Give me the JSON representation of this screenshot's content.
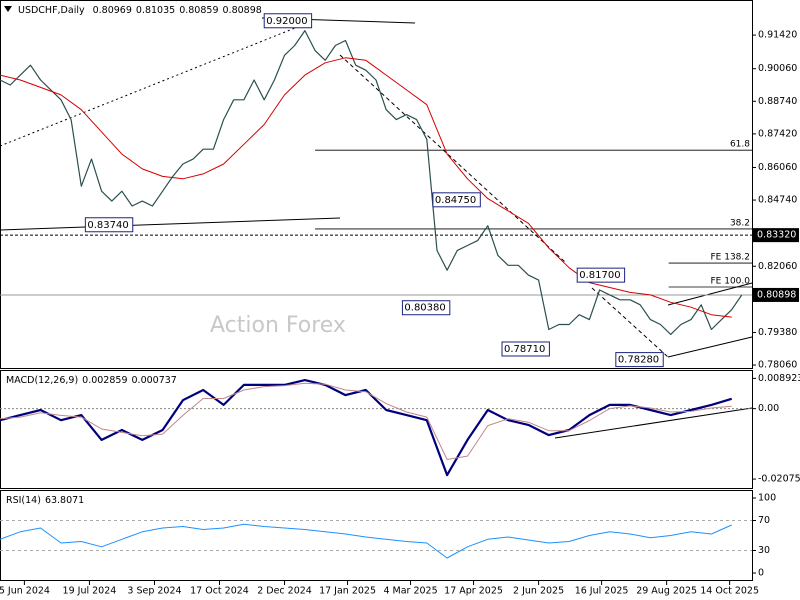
{
  "chart_data": [
    {
      "type": "line",
      "title": "USDCHF,Daily",
      "ohlc": [
        0.80969,
        0.81035,
        0.80859,
        0.80898
      ],
      "watermark": "Action Forex",
      "xlim": [
        0,
        370
      ],
      "xticks": [
        {
          "value": 12,
          "label": "5 Jun 2024"
        },
        {
          "value": 44,
          "label": "19 Jul 2024"
        },
        {
          "value": 76,
          "label": "3 Sep 2024"
        },
        {
          "value": 108,
          "label": "17 Oct 2024"
        },
        {
          "value": 140,
          "label": "2 Dec 2024"
        },
        {
          "value": 171,
          "label": "17 Jan 2025"
        },
        {
          "value": 202,
          "label": "4 Mar 2025"
        },
        {
          "value": 233,
          "label": "17 Apr 2025"
        },
        {
          "value": 265,
          "label": "2 Jun 2025"
        },
        {
          "value": 296,
          "label": "16 Jul 2025"
        },
        {
          "value": 328,
          "label": "29 Aug 2025"
        },
        {
          "value": 359,
          "label": "14 Oct 2025"
        }
      ],
      "ylim": [
        0.7794,
        0.9276
      ],
      "yticks": [
        {
          "value": 0.9142,
          "label": "0.91420"
        },
        {
          "value": 0.9006,
          "label": "0.90060"
        },
        {
          "value": 0.8874,
          "label": "0.88740"
        },
        {
          "value": 0.8742,
          "label": "0.87420"
        },
        {
          "value": 0.8606,
          "label": "0.86060"
        },
        {
          "value": 0.8474,
          "label": "0.84740"
        },
        {
          "value": 0.8206,
          "label": "0.82060"
        },
        {
          "value": 0.7938,
          "label": "0.79380"
        },
        {
          "value": 0.7806,
          "label": "0.78060"
        }
      ],
      "markers": [
        {
          "value": 0.8332,
          "label": "0.83320",
          "line": "dashed"
        },
        {
          "value": 0.80898,
          "label": "0.80898",
          "line": "solid"
        }
      ],
      "annotations": [
        {
          "value": 0.92,
          "label": "0.92000",
          "x": 130
        },
        {
          "value": 0.8374,
          "label": "0.83740",
          "x": 42
        },
        {
          "value": 0.8475,
          "label": "0.84750",
          "x": 213
        },
        {
          "value": 0.8038,
          "label": "0.80380",
          "x": 198
        },
        {
          "value": 0.817,
          "label": "0.81700",
          "x": 284
        },
        {
          "value": 0.7871,
          "label": "0.78710",
          "x": 247
        },
        {
          "value": 0.7828,
          "label": "0.78280",
          "x": 303
        }
      ],
      "levels": [
        {
          "text": "61.8",
          "price": 0.8676,
          "from": 155
        },
        {
          "text": "38.2",
          "price": 0.8357,
          "from": 155
        },
        {
          "text": "FE 138.2",
          "price": 0.8219,
          "from": 329
        },
        {
          "text": "FE 100.0",
          "price": 0.8122,
          "from": 329
        }
      ],
      "series": [
        {
          "color": "#2b4f4f",
          "width": 1.2,
          "x": [
            0,
            5,
            10,
            15,
            20,
            25,
            30,
            35,
            40,
            45,
            50,
            55,
            60,
            65,
            70,
            75,
            80,
            85,
            90,
            95,
            100,
            105,
            110,
            115,
            120,
            125,
            130,
            135,
            140,
            145,
            150,
            155,
            160,
            165,
            170,
            175,
            180,
            185,
            190,
            195,
            200,
            205,
            210,
            215,
            220,
            225,
            230,
            235,
            240,
            245,
            250,
            255,
            260,
            265,
            270,
            275,
            280,
            285,
            290,
            295,
            300,
            305,
            310,
            315,
            320,
            325,
            330,
            335,
            340,
            345,
            350,
            355,
            360,
            365
          ],
          "values": [
            0.896,
            0.894,
            0.898,
            0.902,
            0.896,
            0.892,
            0.888,
            0.88,
            0.853,
            0.864,
            0.851,
            0.847,
            0.851,
            0.845,
            0.847,
            0.845,
            0.851,
            0.857,
            0.862,
            0.864,
            0.868,
            0.868,
            0.88,
            0.888,
            0.888,
            0.896,
            0.888,
            0.896,
            0.906,
            0.91,
            0.916,
            0.908,
            0.904,
            0.91,
            0.912,
            0.902,
            0.9,
            0.896,
            0.884,
            0.88,
            0.882,
            0.88,
            0.872,
            0.827,
            0.819,
            0.827,
            0.829,
            0.831,
            0.837,
            0.825,
            0.821,
            0.821,
            0.817,
            0.815,
            0.795,
            0.797,
            0.797,
            0.801,
            0.799,
            0.811,
            0.809,
            0.807,
            0.807,
            0.805,
            0.799,
            0.797,
            0.793,
            0.797,
            0.799,
            0.805,
            0.795,
            0.799,
            0.803,
            0.809
          ]
        },
        {
          "color": "#d40000",
          "width": 1,
          "x": [
            0,
            10,
            20,
            30,
            40,
            50,
            60,
            70,
            80,
            90,
            100,
            110,
            120,
            130,
            140,
            150,
            160,
            170,
            180,
            190,
            200,
            210,
            220,
            230,
            240,
            250,
            260,
            270,
            280,
            290,
            300,
            310,
            320,
            330,
            340,
            350,
            360
          ],
          "values": [
            0.898,
            0.896,
            0.893,
            0.89,
            0.884,
            0.875,
            0.866,
            0.86,
            0.857,
            0.856,
            0.858,
            0.862,
            0.87,
            0.878,
            0.89,
            0.898,
            0.903,
            0.905,
            0.904,
            0.898,
            0.892,
            0.886,
            0.866,
            0.856,
            0.848,
            0.843,
            0.838,
            0.828,
            0.82,
            0.814,
            0.812,
            0.81,
            0.809,
            0.806,
            0.804,
            0.801,
            0.8
          ]
        }
      ]
    },
    {
      "type": "line",
      "title": "MACD(12,26,9)",
      "readings": [
        0.002859,
        0.000737
      ],
      "ylim": [
        -0.0228,
        0.0108
      ],
      "yticks": [
        0.008923,
        {
          "value": 0,
          "label": "0.00"
        },
        -0.020759
      ],
      "series": [
        {
          "color": "#00007f",
          "width": 2.2,
          "x": [
            0,
            10,
            20,
            30,
            40,
            50,
            60,
            70,
            80,
            90,
            100,
            110,
            120,
            130,
            140,
            150,
            160,
            170,
            180,
            190,
            200,
            210,
            220,
            230,
            240,
            250,
            260,
            270,
            280,
            290,
            300,
            310,
            320,
            330,
            340,
            350,
            360
          ],
          "values": [
            -0.0034,
            -0.0019,
            -0.0004,
            -0.0034,
            -0.0019,
            -0.0092,
            -0.0063,
            -0.0092,
            -0.0063,
            0.0025,
            0.0055,
            0.0011,
            0.007,
            0.007,
            0.007,
            0.0084,
            0.007,
            0.004,
            0.0055,
            -0.0004,
            -0.0019,
            -0.0034,
            -0.0196,
            -0.0092,
            -0.0004,
            -0.0034,
            -0.0048,
            -0.0078,
            -0.0063,
            -0.0019,
            0.0011,
            0.0011,
            -0.0004,
            -0.0019,
            -0.0004,
            0.0011,
            0.0029
          ]
        },
        {
          "color": "#c08888",
          "width": 1,
          "x": [
            0,
            10,
            20,
            30,
            40,
            50,
            60,
            70,
            80,
            90,
            100,
            110,
            120,
            130,
            140,
            150,
            160,
            170,
            180,
            190,
            200,
            210,
            220,
            230,
            240,
            250,
            260,
            270,
            280,
            290,
            300,
            310,
            320,
            330,
            340,
            350,
            360
          ],
          "values": [
            -0.003,
            -0.0025,
            -0.0012,
            -0.002,
            -0.0025,
            -0.006,
            -0.007,
            -0.008,
            -0.0075,
            -0.002,
            0.003,
            0.003,
            0.0055,
            0.0065,
            0.0068,
            0.0075,
            0.0072,
            0.0055,
            0.005,
            0.0015,
            -0.001,
            -0.0025,
            -0.015,
            -0.014,
            -0.005,
            -0.003,
            -0.004,
            -0.0065,
            -0.0065,
            -0.0035,
            0.0,
            0.0008,
            0.0002,
            -0.001,
            -0.0008,
            0.0002,
            0.0007
          ]
        }
      ]
    },
    {
      "type": "line",
      "title": "RSI(14)",
      "readings": [
        63.8071
      ],
      "grid": true,
      "ylim": [
        0,
        100
      ],
      "yticks": [
        100,
        70,
        30,
        0
      ],
      "series": [
        {
          "color": "#1e90ff",
          "width": 1,
          "x": [
            0,
            10,
            20,
            30,
            40,
            50,
            60,
            70,
            80,
            90,
            100,
            110,
            120,
            130,
            140,
            150,
            160,
            170,
            180,
            190,
            200,
            210,
            220,
            230,
            240,
            250,
            260,
            270,
            280,
            290,
            300,
            310,
            320,
            330,
            340,
            350,
            360
          ],
          "values": [
            45,
            55,
            60,
            40,
            42,
            35,
            45,
            55,
            60,
            62,
            58,
            60,
            65,
            62,
            60,
            58,
            55,
            52,
            48,
            45,
            42,
            40,
            20,
            35,
            45,
            48,
            44,
            40,
            42,
            50,
            55,
            52,
            47,
            50,
            55,
            52,
            64
          ]
        }
      ]
    }
  ]
}
